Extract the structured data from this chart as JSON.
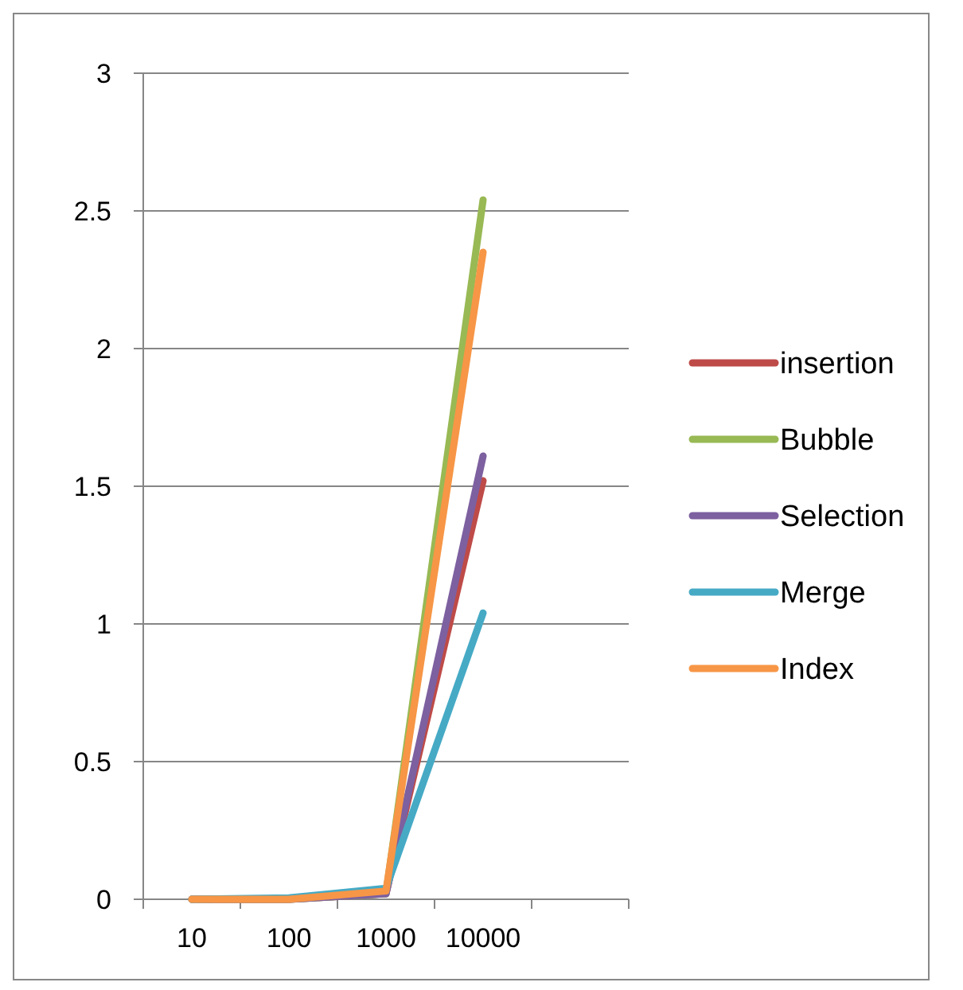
{
  "chart_data": {
    "type": "line",
    "categories": [
      "10",
      "100",
      "1000",
      "10000",
      null
    ],
    "series": [
      {
        "name": "insertion",
        "color": "#be4b48",
        "values": [
          0,
          0,
          0.02,
          1.52,
          null
        ]
      },
      {
        "name": "Bubble",
        "color": "#98b954",
        "values": [
          0,
          0,
          0.02,
          2.54,
          null
        ]
      },
      {
        "name": "Selection",
        "color": "#7d60a0",
        "values": [
          0,
          0,
          0.02,
          1.61,
          null
        ]
      },
      {
        "name": "Merge",
        "color": "#46aac5",
        "values": [
          0,
          0.005,
          0.04,
          1.04,
          null
        ]
      },
      {
        "name": "Index",
        "color": "#f79646",
        "values": [
          0,
          0,
          0.03,
          2.35,
          null
        ]
      }
    ],
    "ylim": [
      0,
      3
    ],
    "yticks": [
      0,
      0.5,
      1,
      1.5,
      2,
      2.5,
      3
    ],
    "grid": "y",
    "legend": "right",
    "marker": "none",
    "line_style": "solid"
  }
}
